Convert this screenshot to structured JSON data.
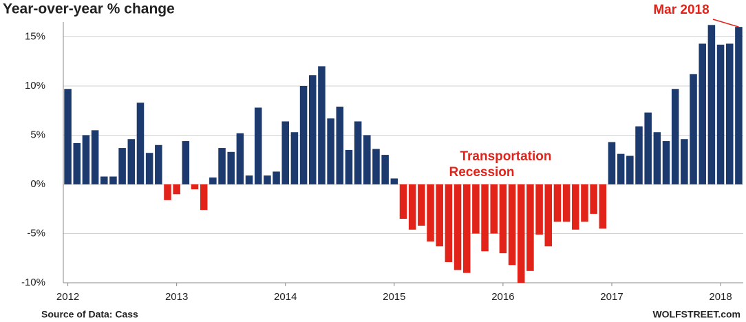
{
  "chart_data": {
    "type": "bar",
    "title": "Year-over-year % change",
    "categories": [
      "2012",
      null,
      null,
      null,
      null,
      null,
      null,
      null,
      null,
      null,
      null,
      null,
      "2013",
      null,
      null,
      null,
      null,
      null,
      null,
      null,
      null,
      null,
      null,
      null,
      "2014",
      null,
      null,
      null,
      null,
      null,
      null,
      null,
      null,
      null,
      null,
      null,
      "2015",
      null,
      null,
      null,
      null,
      null,
      null,
      null,
      null,
      null,
      null,
      null,
      "2016",
      null,
      null,
      null,
      null,
      null,
      null,
      null,
      null,
      null,
      null,
      null,
      "2017",
      null,
      null,
      null,
      null,
      null,
      null,
      null,
      null,
      null,
      null,
      null,
      "2018",
      null,
      null
    ],
    "values": [
      9.7,
      4.2,
      5.0,
      5.5,
      0.8,
      0.8,
      3.7,
      4.6,
      8.3,
      3.2,
      4.0,
      -1.6,
      -1.0,
      4.4,
      -0.5,
      -2.6,
      0.7,
      3.7,
      3.3,
      5.2,
      0.9,
      7.8,
      0.9,
      1.3,
      6.4,
      5.3,
      10.0,
      11.1,
      12.0,
      6.7,
      7.9,
      3.5,
      6.4,
      5.0,
      3.6,
      3.0,
      0.6,
      -3.5,
      -4.6,
      -4.2,
      -5.8,
      -6.3,
      -7.9,
      -8.7,
      -9.0,
      -5.0,
      -6.8,
      -5.0,
      -7.0,
      -8.2,
      -10.0,
      -8.8,
      -5.1,
      -6.3,
      -3.8,
      -3.8,
      -4.6,
      -3.8,
      -3.0,
      -4.5,
      4.3,
      3.1,
      2.9,
      5.9,
      7.3,
      5.3,
      4.4,
      9.7,
      4.6,
      11.2,
      14.3,
      16.2,
      14.2,
      14.3,
      16.0
    ],
    "color": "#1c3a6e",
    "negative_color": "#e2231a",
    "ylim": [
      -10,
      16.5
    ],
    "yticks": [
      {
        "value": -10,
        "label": "-10%"
      },
      {
        "value": -5,
        "label": "-5%"
      },
      {
        "value": 0,
        "label": "0%"
      },
      {
        "value": 5,
        "label": "5%"
      },
      {
        "value": 10,
        "label": "10%"
      },
      {
        "value": 15,
        "label": "15%"
      }
    ],
    "grid": true,
    "annotations": [
      {
        "text": "Transportation"
      },
      {
        "text": "Recession"
      },
      {
        "text": "Mar 2018"
      }
    ],
    "source": "Source of Data: Cass",
    "credit": "WOLFSTREET.com"
  }
}
